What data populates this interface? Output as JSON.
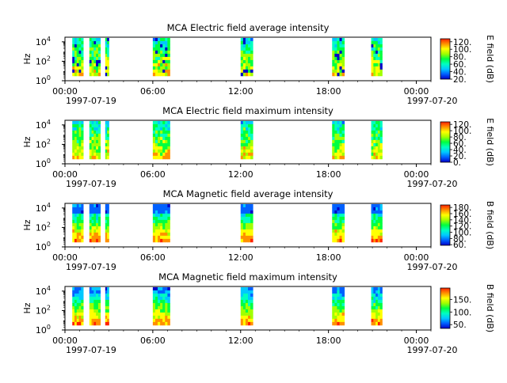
{
  "x_ticks": [
    "00:00",
    "06:00",
    "12:00",
    "18:00",
    "00:00"
  ],
  "x_dates": [
    "1997-07-19",
    "1997-07-20"
  ],
  "colormap": [
    "#0000c8",
    "#0060ff",
    "#00c8ff",
    "#00ffc0",
    "#00ff40",
    "#a0ff00",
    "#ffff00",
    "#ff9000",
    "#ff2000"
  ],
  "chart_data": [
    {
      "type": "heatmap",
      "title": "MCA  Electric field average intensity",
      "ylabel": "Hz",
      "y_ticks": [
        "10^0",
        "10^2",
        "10^4"
      ],
      "y_scale": "log",
      "ylim": [
        1,
        30000
      ],
      "xlim": [
        "1997-07-19 00:00",
        "1997-07-20 01:00"
      ],
      "colorbar": {
        "label": "E field (dB)",
        "ticks": [
          20,
          40,
          60,
          80,
          100,
          120
        ],
        "tick_labels": [
          "20.",
          "40.",
          "60.",
          "80.",
          "100.",
          "120."
        ],
        "range": [
          20,
          128
        ]
      },
      "data_intervals": [
        [
          "00:30",
          "01:15"
        ],
        [
          "01:40",
          "02:25"
        ],
        [
          "02:45",
          "03:00"
        ],
        [
          "06:00",
          "07:10"
        ],
        [
          "12:00",
          "12:50"
        ],
        [
          "18:15",
          "19:05"
        ],
        [
          "20:55",
          "21:40"
        ]
      ]
    },
    {
      "type": "heatmap",
      "title": "MCA  Electric field maximum intensity",
      "ylabel": "Hz",
      "y_ticks": [
        "10^0",
        "10^2",
        "10^4"
      ],
      "y_scale": "log",
      "ylim": [
        1,
        30000
      ],
      "xlim": [
        "1997-07-19 00:00",
        "1997-07-20 01:00"
      ],
      "colorbar": {
        "label": "E field (dB)",
        "ticks": [
          0,
          20,
          40,
          60,
          80,
          100,
          120
        ],
        "tick_labels": [
          "0.",
          "20.",
          "40.",
          "60.",
          "80.",
          "100.",
          "120."
        ],
        "range": [
          0,
          128
        ]
      },
      "data_intervals": [
        [
          "00:30",
          "01:15"
        ],
        [
          "01:40",
          "02:25"
        ],
        [
          "02:45",
          "03:00"
        ],
        [
          "06:00",
          "07:10"
        ],
        [
          "12:00",
          "12:50"
        ],
        [
          "18:15",
          "19:05"
        ],
        [
          "20:55",
          "21:40"
        ]
      ]
    },
    {
      "type": "heatmap",
      "title": "MCA  Magnetic field average intensity",
      "ylabel": "Hz",
      "y_ticks": [
        "10^0",
        "10^2",
        "10^4"
      ],
      "y_scale": "log",
      "ylim": [
        1,
        30000
      ],
      "xlim": [
        "1997-07-19 00:00",
        "1997-07-20 01:00"
      ],
      "colorbar": {
        "label": "B field (dB)",
        "ticks": [
          60,
          80,
          100,
          120,
          140,
          160,
          180
        ],
        "tick_labels": [
          "60.",
          "80.",
          "100.",
          "120.",
          "140.",
          "160.",
          "180."
        ],
        "range": [
          58,
          188
        ]
      },
      "data_intervals": [
        [
          "00:30",
          "01:15"
        ],
        [
          "01:40",
          "02:25"
        ],
        [
          "02:45",
          "03:00"
        ],
        [
          "06:00",
          "07:10"
        ],
        [
          "12:00",
          "12:50"
        ],
        [
          "18:15",
          "19:05"
        ],
        [
          "20:55",
          "21:40"
        ]
      ]
    },
    {
      "type": "heatmap",
      "title": "MCA  Magnetic field maximum intensity",
      "ylabel": "Hz",
      "y_ticks": [
        "10^0",
        "10^2",
        "10^4"
      ],
      "y_scale": "log",
      "ylim": [
        1,
        30000
      ],
      "xlim": [
        "1997-07-19 00:00",
        "1997-07-20 01:00"
      ],
      "colorbar": {
        "label": "B field (dB)",
        "ticks": [
          50,
          100,
          150
        ],
        "tick_labels": [
          "50.",
          "100.",
          "150."
        ],
        "range": [
          35,
          195
        ]
      },
      "data_intervals": [
        [
          "00:30",
          "01:15"
        ],
        [
          "01:40",
          "02:25"
        ],
        [
          "02:45",
          "03:00"
        ],
        [
          "06:00",
          "07:10"
        ],
        [
          "12:00",
          "12:50"
        ],
        [
          "18:15",
          "19:05"
        ],
        [
          "20:55",
          "21:40"
        ]
      ]
    }
  ]
}
